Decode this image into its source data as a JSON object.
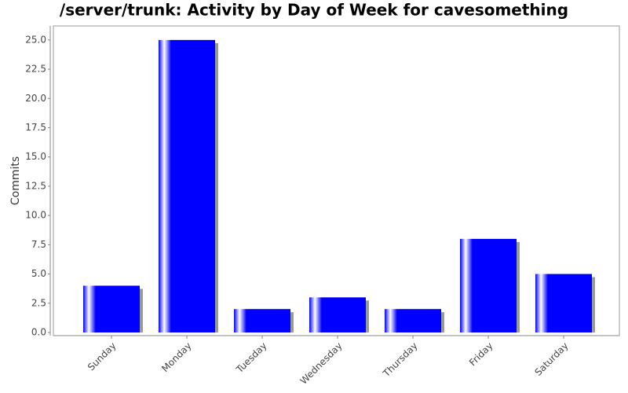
{
  "chart_data": {
    "type": "bar",
    "title": "/server/trunk: Activity by Day of Week for cavesomething",
    "y_label": "Commits",
    "categories": [
      "Sunday",
      "Monday",
      "Tuesday",
      "Wednesday",
      "Thursday",
      "Friday",
      "Saturday"
    ],
    "values": [
      4,
      25,
      2,
      3,
      2,
      8,
      5
    ],
    "color": "#0000ff",
    "ylim": [
      0,
      26.2
    ],
    "yticks": [
      {
        "value": 0,
        "label": "0.0"
      },
      {
        "value": 2.5,
        "label": "2.5"
      },
      {
        "value": 5,
        "label": "5.0"
      },
      {
        "value": 7.5,
        "label": "7.5"
      },
      {
        "value": 10,
        "label": "10.0"
      },
      {
        "value": 12.5,
        "label": "12.5"
      },
      {
        "value": 15,
        "label": "15.0"
      },
      {
        "value": 17.5,
        "label": "17.5"
      },
      {
        "value": 20,
        "label": "20.0"
      },
      {
        "value": 22.5,
        "label": "22.5"
      },
      {
        "value": 25,
        "label": "25.0"
      }
    ],
    "grid": false
  }
}
